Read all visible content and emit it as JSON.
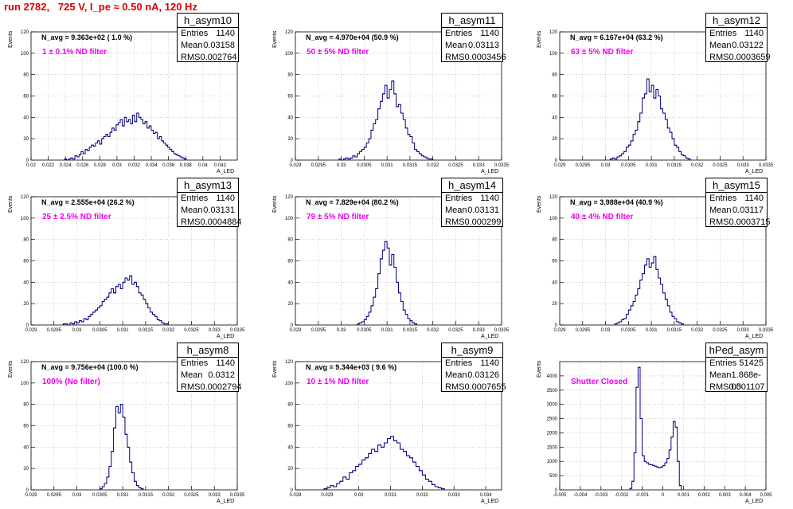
{
  "page": {
    "title": "run 2782,   725 V, I_pe ≈ 0.50 nA, 120 Hz"
  },
  "labels": {
    "entries": "Entries",
    "mean": "Mean",
    "rms": "RMS",
    "y_axis": "Events",
    "x_axis": "A_LED"
  },
  "colors": {
    "title": "#e00000",
    "histogram_line": "#000080",
    "filter_text": "#ee00ee",
    "grid": "#b0b0b0"
  },
  "chart_data": [
    {
      "type": "histogram",
      "name": "h_asym10",
      "navg": "N_avg = 9.363e+02 ( 1.0 %)",
      "filter": "1 ± 0.1% ND filter",
      "stats": {
        "entries": "1140",
        "mean": "0.03158",
        "rms": "0.002764"
      },
      "xlim": [
        0.02,
        0.044
      ],
      "ylim": [
        0,
        120
      ],
      "xticks": [
        "0.02",
        "0.022",
        "0.024",
        "0.026",
        "0.028",
        "0.03",
        "0.032",
        "0.034",
        "0.036",
        "0.038",
        "0.04",
        "0.042"
      ],
      "yticks": [
        "0",
        "20",
        "40",
        "60",
        "80",
        "100",
        "120"
      ],
      "grid": true,
      "bins": {
        "x0": 0.0239,
        "width": 0.00024,
        "counts": [
          1,
          0,
          1,
          2,
          1,
          4,
          3,
          5,
          8,
          6,
          10,
          9,
          12,
          14,
          13,
          16,
          18,
          15,
          20,
          22,
          24,
          22,
          26,
          30,
          28,
          33,
          35,
          38,
          32,
          40,
          36,
          38,
          34,
          42,
          36,
          44,
          40,
          38,
          34,
          36,
          30,
          32,
          28,
          25,
          26,
          20,
          22,
          18,
          16,
          14,
          12,
          10,
          8,
          6,
          5,
          4,
          3,
          2,
          1
        ]
      }
    },
    {
      "type": "histogram",
      "name": "h_asym11",
      "navg": "N_avg = 4.970e+04 (50.9 %)",
      "filter": "50 ± 5% ND filter",
      "stats": {
        "entries": "1140",
        "mean": "0.03113",
        "rms": "0.0003456"
      },
      "xlim": [
        0.029,
        0.0335
      ],
      "ylim": [
        0,
        120
      ],
      "xticks": [
        "0.029",
        "0.0295",
        "0.03",
        "0.0305",
        "0.031",
        "0.0315",
        "0.032",
        "0.0325",
        "0.033",
        "0.0335"
      ],
      "yticks": [
        "0",
        "20",
        "40",
        "60",
        "80",
        "100",
        "120"
      ],
      "grid": true,
      "bins": {
        "x0": 0.02995,
        "width": 5e-05,
        "counts": [
          1,
          0,
          1,
          2,
          1,
          2,
          4,
          3,
          6,
          8,
          10,
          12,
          16,
          20,
          28,
          34,
          38,
          48,
          55,
          62,
          70,
          58,
          66,
          74,
          62,
          50,
          52,
          44,
          38,
          30,
          24,
          22,
          16,
          10,
          8,
          6,
          4,
          3,
          2,
          1,
          1
        ]
      }
    },
    {
      "type": "histogram",
      "name": "h_asym12",
      "navg": "N_avg = 6.167e+04 (63.2 %)",
      "filter": "63 ± 5% ND filter",
      "stats": {
        "entries": "1140",
        "mean": "0.03122",
        "rms": "0.0003659"
      },
      "xlim": [
        0.029,
        0.0335
      ],
      "ylim": [
        0,
        120
      ],
      "xticks": [
        "0.029",
        "0.0295",
        "0.03",
        "0.0305",
        "0.031",
        "0.0315",
        "0.032",
        "0.0325",
        "0.033",
        "0.0335"
      ],
      "yticks": [
        "0",
        "20",
        "40",
        "60",
        "80",
        "100",
        "120"
      ],
      "grid": true,
      "bins": {
        "x0": 0.0301,
        "width": 5e-05,
        "counts": [
          1,
          2,
          1,
          3,
          4,
          6,
          8,
          12,
          14,
          18,
          24,
          28,
          36,
          44,
          58,
          62,
          76,
          64,
          70,
          58,
          66,
          60,
          48,
          44,
          38,
          30,
          26,
          20,
          14,
          12,
          8,
          5,
          4,
          2,
          1
        ]
      }
    },
    {
      "type": "histogram",
      "name": "h_asym13",
      "navg": "N_avg = 2.555e+04 (26.2 %)",
      "filter": "25 ± 2.5% ND filter",
      "stats": {
        "entries": "1140",
        "mean": "0.03131",
        "rms": "0.0004884"
      },
      "xlim": [
        0.029,
        0.0335
      ],
      "ylim": [
        0,
        120
      ],
      "xticks": [
        "0.029",
        "0.0295",
        "0.03",
        "0.0305",
        "0.031",
        "0.0315",
        "0.032",
        "0.0325",
        "0.033",
        "0.0335"
      ],
      "yticks": [
        "0",
        "20",
        "40",
        "60",
        "80",
        "100",
        "120"
      ],
      "grid": true,
      "bins": {
        "x0": 0.0297,
        "width": 5e-05,
        "counts": [
          1,
          1,
          0,
          2,
          1,
          3,
          2,
          4,
          3,
          6,
          5,
          8,
          10,
          12,
          14,
          16,
          18,
          22,
          24,
          26,
          30,
          34,
          30,
          36,
          38,
          34,
          40,
          44,
          42,
          46,
          38,
          40,
          36,
          30,
          28,
          24,
          20,
          16,
          12,
          10,
          8,
          5,
          4,
          2,
          1,
          1
        ]
      }
    },
    {
      "type": "histogram",
      "name": "h_asym14",
      "navg": "N_avg = 7.829e+04 (80.2 %)",
      "filter": "79 ± 5% ND filter",
      "stats": {
        "entries": "1140",
        "mean": "0.03131",
        "rms": "0.000299"
      },
      "xlim": [
        0.029,
        0.0335
      ],
      "ylim": [
        0,
        120
      ],
      "xticks": [
        "0.029",
        "0.0295",
        "0.03",
        "0.0305",
        "0.031",
        "0.0315",
        "0.032",
        "0.0325",
        "0.033",
        "0.0335"
      ],
      "yticks": [
        "0",
        "20",
        "40",
        "60",
        "80",
        "100",
        "120"
      ],
      "grid": true,
      "bins": {
        "x0": 0.03035,
        "width": 5e-05,
        "counts": [
          1,
          2,
          3,
          5,
          8,
          12,
          18,
          26,
          34,
          48,
          62,
          70,
          78,
          72,
          56,
          66,
          54,
          40,
          30,
          22,
          14,
          10,
          6,
          4,
          2,
          1
        ]
      }
    },
    {
      "type": "histogram",
      "name": "h_asym15",
      "navg": "N_avg = 3.988e+04 (40.9 %)",
      "filter": "40 ± 4% ND filter",
      "stats": {
        "entries": "1140",
        "mean": "0.03117",
        "rms": "0.0003715"
      },
      "xlim": [
        0.029,
        0.0335
      ],
      "ylim": [
        0,
        120
      ],
      "xticks": [
        "0.029",
        "0.0295",
        "0.03",
        "0.0305",
        "0.031",
        "0.0315",
        "0.032",
        "0.0325",
        "0.033",
        "0.0335"
      ],
      "yticks": [
        "0",
        "20",
        "40",
        "60",
        "80",
        "100",
        "120"
      ],
      "grid": true,
      "bins": {
        "x0": 0.0302,
        "width": 5e-05,
        "counts": [
          1,
          2,
          3,
          5,
          6,
          10,
          14,
          18,
          22,
          28,
          34,
          42,
          48,
          56,
          62,
          54,
          58,
          64,
          52,
          44,
          38,
          30,
          24,
          18,
          12,
          8,
          6,
          3,
          2,
          1
        ]
      }
    },
    {
      "type": "histogram",
      "name": "h_asym8",
      "navg": "N_avg = 9.756e+04 (100.0 %)",
      "filter": "100% (No filter)",
      "stats": {
        "entries": "1140",
        "mean": "0.0312",
        "rms": "0.0002794"
      },
      "xlim": [
        0.029,
        0.0335
      ],
      "ylim": [
        0,
        120
      ],
      "xticks": [
        "0.029",
        "0.0295",
        "0.03",
        "0.0305",
        "0.031",
        "0.0315",
        "0.032",
        "0.0325",
        "0.033",
        "0.0335"
      ],
      "yticks": [
        "0",
        "20",
        "40",
        "60",
        "80",
        "100",
        "120"
      ],
      "grid": true,
      "bins": {
        "x0": 0.0305,
        "width": 5e-05,
        "counts": [
          1,
          3,
          6,
          12,
          22,
          36,
          58,
          78,
          72,
          80,
          68,
          52,
          40,
          26,
          16,
          8,
          4,
          2,
          1
        ]
      }
    },
    {
      "type": "histogram",
      "name": "h_asym9",
      "navg": "N_avg = 9.344e+03 ( 9.6 %)",
      "filter": "10 ± 1% ND filter",
      "stats": {
        "entries": "1140",
        "mean": "0.03126",
        "rms": "0.0007655"
      },
      "xlim": [
        0.028,
        0.0345
      ],
      "ylim": [
        0,
        120
      ],
      "xticks": [
        "0.028",
        "0.029",
        "0.03",
        "0.031",
        "0.032",
        "0.033",
        "0.034"
      ],
      "yticks": [
        "0",
        "20",
        "40",
        "60",
        "80",
        "100",
        "120"
      ],
      "grid": true,
      "bins": {
        "x0": 0.0289,
        "width": 0.0001,
        "counts": [
          1,
          2,
          4,
          3,
          6,
          8,
          12,
          10,
          16,
          18,
          22,
          24,
          28,
          30,
          34,
          38,
          36,
          42,
          40,
          44,
          48,
          50,
          46,
          44,
          38,
          36,
          32,
          30,
          26,
          22,
          18,
          14,
          10,
          8,
          5,
          3,
          2,
          1
        ]
      }
    },
    {
      "type": "histogram",
      "name": "hPed_asym",
      "filter": "Shutter Closed",
      "stats": {
        "entries": "51425",
        "mean": "1.868e-05",
        "rms": "0.001107"
      },
      "xlim": [
        -0.005,
        0.005
      ],
      "ylim": [
        0,
        4500
      ],
      "xticks": [
        "-0.005",
        "-0.004",
        "-0.003",
        "-0.002",
        "-0.001",
        "0",
        "0.001",
        "0.002",
        "0.003",
        "0.004",
        "0.005"
      ],
      "yticks": [
        "0",
        "500",
        "1000",
        "1500",
        "2000",
        "2500",
        "3000",
        "3500",
        "4000"
      ],
      "grid": true,
      "bins": {
        "x0": -0.0016,
        "width": 0.0001,
        "counts": [
          50,
          300,
          1300,
          3600,
          4300,
          2500,
          1200,
          1000,
          950,
          900,
          880,
          860,
          830,
          800,
          780,
          800,
          850,
          950,
          1100,
          1400,
          1850,
          2400,
          2200,
          1000,
          150
        ]
      }
    }
  ]
}
